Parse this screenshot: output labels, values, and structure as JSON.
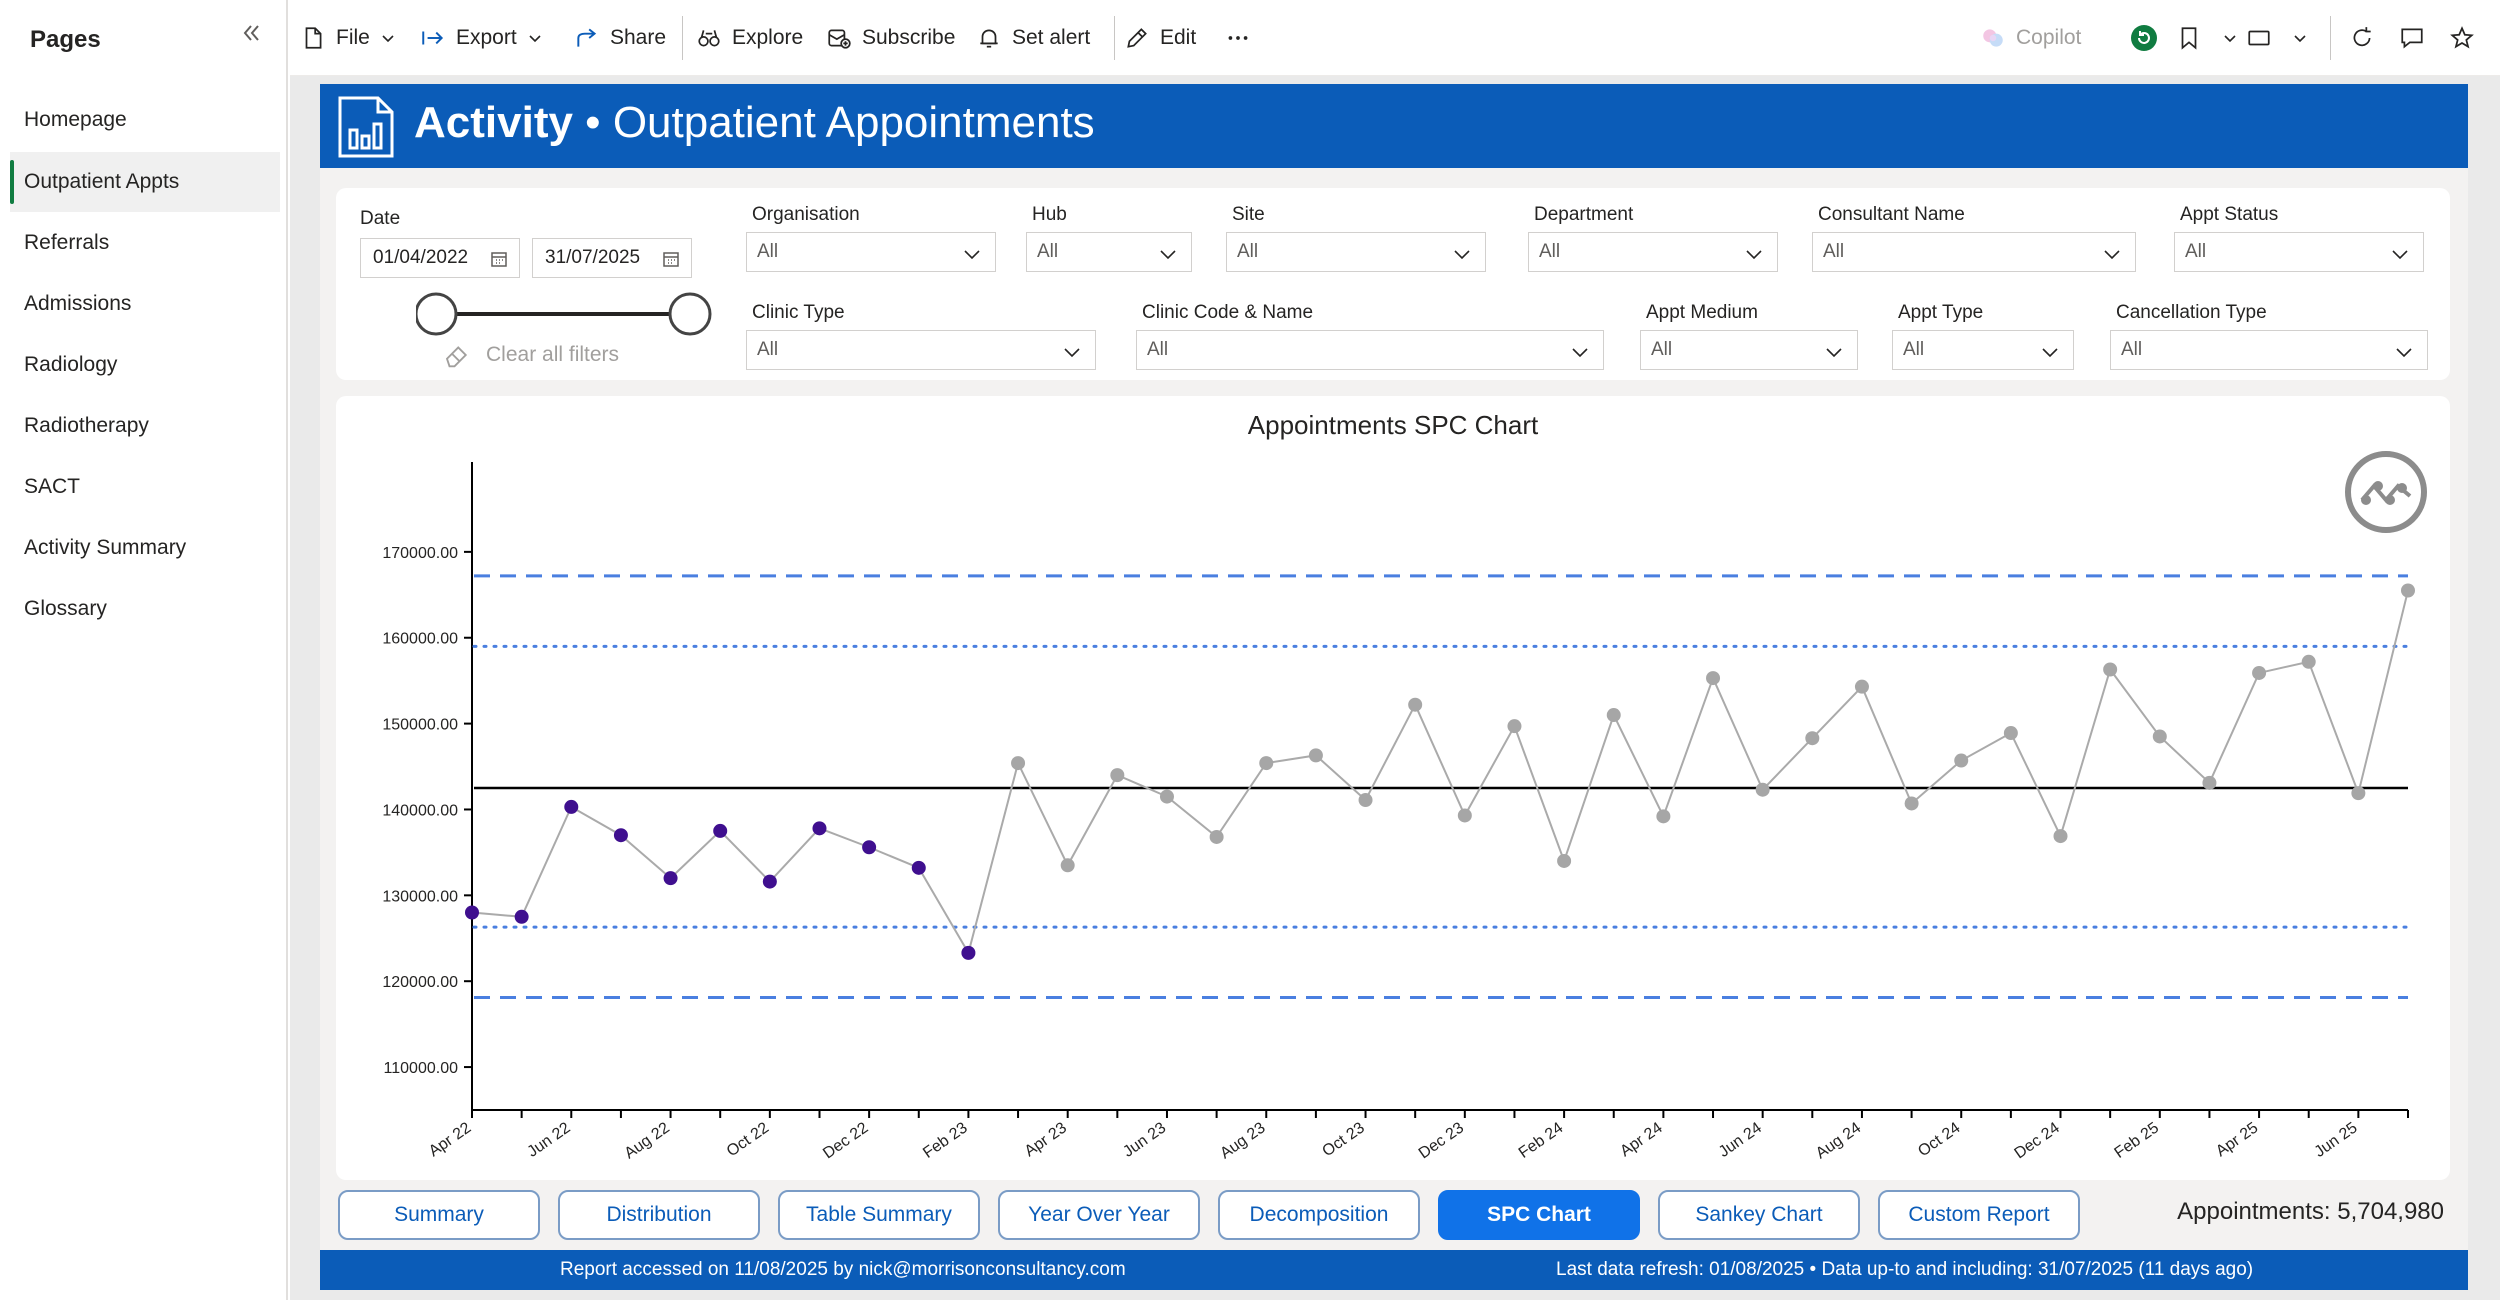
{
  "sidebar": {
    "title": "Pages",
    "items": [
      {
        "label": "Homepage"
      },
      {
        "label": "Outpatient Appts",
        "active": true
      },
      {
        "label": "Referrals"
      },
      {
        "label": "Admissions"
      },
      {
        "label": "Radiology"
      },
      {
        "label": "Radiotherapy"
      },
      {
        "label": "SACT"
      },
      {
        "label": "Activity Summary"
      },
      {
        "label": "Glossary"
      }
    ]
  },
  "toolbar": {
    "file": "File",
    "export": "Export",
    "share": "Share",
    "explore": "Explore",
    "subscribe": "Subscribe",
    "set_alert": "Set alert",
    "edit": "Edit",
    "copilot": "Copilot"
  },
  "banner": {
    "title_bold": "Activity",
    "title_sep": " • ",
    "title_rest": "Outpatient Appointments"
  },
  "filters": {
    "date": {
      "label": "Date",
      "from": "01/04/2022",
      "to": "31/07/2025"
    },
    "clear_all": "Clear all filters",
    "fields": [
      {
        "label": "Organisation",
        "value": "All"
      },
      {
        "label": "Hub",
        "value": "All"
      },
      {
        "label": "Site",
        "value": "All"
      },
      {
        "label": "Department",
        "value": "All"
      },
      {
        "label": "Consultant Name",
        "value": "All"
      },
      {
        "label": "Appt Status",
        "value": "All"
      },
      {
        "label": "Clinic Type",
        "value": "All"
      },
      {
        "label": "Clinic Code & Name",
        "value": "All"
      },
      {
        "label": "Appt Medium",
        "value": "All"
      },
      {
        "label": "Appt Type",
        "value": "All"
      },
      {
        "label": "Cancellation Type",
        "value": "All"
      }
    ]
  },
  "chart_data": {
    "type": "line",
    "title": "Appointments SPC Chart",
    "xlabel": "",
    "ylabel": "",
    "ylim": [
      105000,
      180000
    ],
    "y_ticks": [
      "110000.00",
      "120000.00",
      "130000.00",
      "140000.00",
      "150000.00",
      "160000.00",
      "170000.00"
    ],
    "y_tick_values": [
      110000,
      120000,
      130000,
      140000,
      150000,
      160000,
      170000
    ],
    "x_tick_labels": [
      "Apr 22",
      "Jun 22",
      "Aug 22",
      "Oct 22",
      "Dec 22",
      "Feb 23",
      "Apr 23",
      "Jun 23",
      "Aug 23",
      "Oct 23",
      "Dec 23",
      "Feb 24",
      "Apr 24",
      "Jun 24",
      "Aug 24",
      "Oct 24",
      "Dec 24",
      "Feb 25",
      "Apr 25",
      "Jun 25"
    ],
    "x": [
      "Apr 22",
      "May 22",
      "Jun 22",
      "Jul 22",
      "Aug 22",
      "Sep 22",
      "Oct 22",
      "Nov 22",
      "Dec 22",
      "Jan 23",
      "Feb 23",
      "Mar 23",
      "Apr 23",
      "May 23",
      "Jun 23",
      "Jul 23",
      "Aug 23",
      "Sep 23",
      "Oct 23",
      "Nov 23",
      "Dec 23",
      "Jan 24",
      "Feb 24",
      "Mar 24",
      "Apr 24",
      "May 24",
      "Jun 24",
      "Jul 24",
      "Aug 24",
      "Sep 24",
      "Oct 24",
      "Nov 24",
      "Dec 24",
      "Jan 25",
      "Feb 25",
      "Mar 25",
      "Apr 25",
      "May 25",
      "Jun 25",
      "Jul 25"
    ],
    "series": [
      {
        "values": [
          128000,
          127500,
          140300,
          137000,
          132000,
          137500,
          131600,
          137800,
          135600,
          133200,
          123300,
          145400,
          133500,
          144000,
          141500,
          136800,
          145400,
          146300,
          141100,
          152200,
          139300,
          149700,
          134000,
          151000,
          139200,
          155300,
          142300,
          148300,
          154300,
          140700,
          145700,
          148900,
          136900,
          156300,
          148500,
          143100,
          155900,
          157200,
          141900,
          165500
        ]
      }
    ],
    "special_cause_count": 11,
    "mean": 142500,
    "upper_control_limit": 167200,
    "lower_control_limit": 118100,
    "upper_warning_limit": 159000,
    "lower_warning_limit": 126300,
    "grid": false,
    "legend": "none",
    "colors": {
      "special_cause": "#3f0f8f",
      "common_cause": "#a6a6a6",
      "line": "#aaaaaa",
      "mean": "#000000",
      "control_limit": "#4a7fe0",
      "warning_limit": "#4a7fe0"
    }
  },
  "tabs": [
    {
      "label": "Summary"
    },
    {
      "label": "Distribution"
    },
    {
      "label": "Table Summary"
    },
    {
      "label": "Year Over Year"
    },
    {
      "label": "Decomposition"
    },
    {
      "label": "SPC Chart",
      "active": true
    },
    {
      "label": "Sankey Chart"
    },
    {
      "label": "Custom Report"
    }
  ],
  "total": "Appointments: 5,704,980",
  "footer": {
    "left": "Report accessed on 11/08/2025 by nick@morrisonconsultancy.com",
    "right": "Last data refresh: 01/08/2025  •  Data up-to and including: 31/07/2025 (11 days ago)"
  },
  "colors": {
    "banner": "#0b5cb8",
    "active_tab": "#1072e8",
    "active_nav_marker": "#107c41"
  }
}
